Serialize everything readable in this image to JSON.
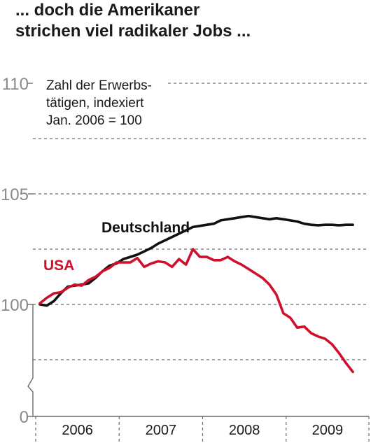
{
  "colors": {
    "usa": "#d0102a",
    "deutschland": "#111111",
    "grid": "#6a6a6a",
    "tick_text": "#8a8a8a"
  },
  "chart_data": {
    "type": "line",
    "title_line1": "... doch die Amerikaner",
    "title_line2": "strichen viel radikaler Jobs ...",
    "note_line1": "Zahl der Erwerbs-",
    "note_line2": "tätigen, indexiert",
    "note_line3": "Jan. 2006 = 100",
    "y_ticks": [
      {
        "value": 0,
        "label": "0"
      },
      {
        "value": 100,
        "label": "100"
      },
      {
        "value": 105,
        "label": "105"
      },
      {
        "value": 110,
        "label": "110"
      }
    ],
    "y_gridlines": [
      97.5,
      100,
      102.5,
      105,
      107.5,
      110
    ],
    "axis_break": true,
    "x_ticks": [
      "2006",
      "2007",
      "2008",
      "2009"
    ],
    "x_range": [
      "2006-01",
      "2009-12"
    ],
    "series": [
      {
        "name": "Deutschland",
        "color": "#111111",
        "x": [
          "2006-01",
          "2006-02",
          "2006-03",
          "2006-04",
          "2006-05",
          "2006-06",
          "2006-07",
          "2006-08",
          "2006-09",
          "2006-10",
          "2006-11",
          "2006-12",
          "2007-01",
          "2007-02",
          "2007-03",
          "2007-04",
          "2007-05",
          "2007-06",
          "2007-07",
          "2007-08",
          "2007-09",
          "2007-10",
          "2007-11",
          "2007-12",
          "2008-01",
          "2008-02",
          "2008-03",
          "2008-04",
          "2008-05",
          "2008-06",
          "2008-07",
          "2008-08",
          "2008-09",
          "2008-10",
          "2008-11",
          "2008-12",
          "2009-01",
          "2009-02",
          "2009-03",
          "2009-04",
          "2009-05",
          "2009-06",
          "2009-07",
          "2009-08",
          "2009-09",
          "2009-10"
        ],
        "values": [
          100.0,
          99.95,
          100.15,
          100.5,
          100.8,
          100.85,
          100.9,
          100.95,
          101.2,
          101.5,
          101.75,
          101.85,
          102.05,
          102.15,
          102.25,
          102.4,
          102.55,
          102.75,
          102.9,
          103.05,
          103.2,
          103.35,
          103.5,
          103.55,
          103.6,
          103.65,
          103.8,
          103.85,
          103.9,
          103.95,
          104.0,
          103.95,
          103.9,
          103.85,
          103.9,
          103.85,
          103.8,
          103.75,
          103.65,
          103.6,
          103.58,
          103.6,
          103.6,
          103.58,
          103.6,
          103.6
        ]
      },
      {
        "name": "USA",
        "color": "#d0102a",
        "x": [
          "2006-01",
          "2006-02",
          "2006-03",
          "2006-04",
          "2006-05",
          "2006-06",
          "2006-07",
          "2006-08",
          "2006-09",
          "2006-10",
          "2006-11",
          "2006-12",
          "2007-01",
          "2007-02",
          "2007-03",
          "2007-04",
          "2007-05",
          "2007-06",
          "2007-07",
          "2007-08",
          "2007-09",
          "2007-10",
          "2007-11",
          "2007-12",
          "2008-01",
          "2008-02",
          "2008-03",
          "2008-04",
          "2008-05",
          "2008-06",
          "2008-07",
          "2008-08",
          "2008-09",
          "2008-10",
          "2008-11",
          "2008-12",
          "2009-01",
          "2009-02",
          "2009-03",
          "2009-04",
          "2009-05",
          "2009-06",
          "2009-07",
          "2009-08",
          "2009-09",
          "2009-10"
        ],
        "values": [
          100.05,
          100.3,
          100.5,
          100.55,
          100.75,
          100.9,
          100.85,
          101.1,
          101.25,
          101.5,
          101.65,
          101.9,
          101.9,
          101.9,
          102.1,
          101.7,
          101.85,
          101.95,
          101.9,
          101.7,
          102.05,
          101.8,
          102.5,
          102.15,
          102.15,
          102.0,
          102.0,
          102.15,
          101.95,
          101.8,
          101.6,
          101.4,
          101.2,
          100.9,
          100.45,
          99.6,
          99.4,
          98.95,
          99.0,
          98.7,
          98.55,
          98.45,
          98.2,
          97.8,
          97.35,
          96.95
        ]
      }
    ],
    "series_labels": {
      "deutschland": "Deutschland",
      "usa": "USA"
    }
  }
}
